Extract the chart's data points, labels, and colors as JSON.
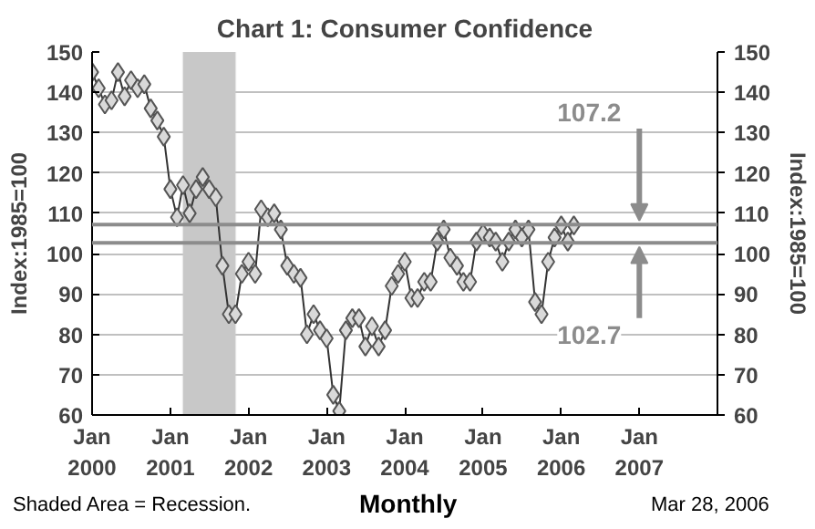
{
  "chart_data": {
    "type": "line",
    "title": "Chart 1: Consumer Confidence",
    "xlabel": "Monthly",
    "ylabel": "Index:1985=100",
    "y2label": "Index:1985=100",
    "x": [
      "2000-01",
      "2000-02",
      "2000-03",
      "2000-04",
      "2000-05",
      "2000-06",
      "2000-07",
      "2000-08",
      "2000-09",
      "2000-10",
      "2000-11",
      "2000-12",
      "2001-01",
      "2001-02",
      "2001-03",
      "2001-04",
      "2001-05",
      "2001-06",
      "2001-07",
      "2001-08",
      "2001-09",
      "2001-10",
      "2001-11",
      "2001-12",
      "2002-01",
      "2002-02",
      "2002-03",
      "2002-04",
      "2002-05",
      "2002-06",
      "2002-07",
      "2002-08",
      "2002-09",
      "2002-10",
      "2002-11",
      "2002-12",
      "2003-01",
      "2003-02",
      "2003-03",
      "2003-04",
      "2003-05",
      "2003-06",
      "2003-07",
      "2003-08",
      "2003-09",
      "2003-10",
      "2003-11",
      "2003-12",
      "2004-01",
      "2004-02",
      "2004-03",
      "2004-04",
      "2004-05",
      "2004-06",
      "2004-07",
      "2004-08",
      "2004-09",
      "2004-10",
      "2004-11",
      "2004-12",
      "2005-01",
      "2005-02",
      "2005-03",
      "2005-04",
      "2005-05",
      "2005-06",
      "2005-07",
      "2005-08",
      "2005-09",
      "2005-10",
      "2005-11",
      "2005-12",
      "2006-01",
      "2006-02",
      "2006-03"
    ],
    "series": [
      {
        "color": "#d9d9d9",
        "values": [
          145,
          141,
          137,
          138,
          145,
          139,
          143,
          141,
          142,
          136,
          133,
          129,
          116,
          109,
          117,
          110,
          116,
          119,
          116,
          114,
          97,
          85,
          85,
          95,
          98,
          95,
          111,
          109,
          110,
          106,
          97,
          95,
          94,
          80,
          85,
          81,
          79,
          65,
          61,
          81,
          84,
          84,
          77,
          82,
          77,
          81,
          92,
          95,
          98,
          89,
          89,
          93,
          93,
          103,
          106,
          99,
          97,
          93,
          93,
          103,
          105,
          104,
          103,
          98,
          103,
          106,
          104,
          106,
          88,
          85,
          98,
          104,
          107,
          103,
          107
        ]
      }
    ],
    "marker": "diamond",
    "line_style": "solid",
    "grid": "y",
    "xlim": [
      "2000-01",
      "2008-01"
    ],
    "xticks": [
      {
        "value": "2000-01",
        "label": "Jan\n2000"
      },
      {
        "value": "2001-01",
        "label": "Jan\n2001"
      },
      {
        "value": "2002-01",
        "label": "Jan\n2002"
      },
      {
        "value": "2003-01",
        "label": "Jan\n2003"
      },
      {
        "value": "2004-01",
        "label": "Jan\n2004"
      },
      {
        "value": "2005-01",
        "label": "Jan\n2005"
      },
      {
        "value": "2006-01",
        "label": "Jan\n2006"
      },
      {
        "value": "2007-01",
        "label": "Jan\n2007"
      }
    ],
    "ylim": [
      60,
      150
    ],
    "yticks": [
      60,
      70,
      80,
      90,
      100,
      110,
      120,
      130,
      140,
      150
    ],
    "y2lim": [
      60,
      150
    ],
    "y2ticks": [
      60,
      70,
      80,
      90,
      100,
      110,
      120,
      130,
      140,
      150
    ],
    "ref_lines": [
      {
        "axis": "y",
        "value": 107.2,
        "label": "107.2",
        "color": "#8c8c8c"
      },
      {
        "axis": "y",
        "value": 102.7,
        "label": "102.7",
        "color": "#8c8c8c"
      }
    ],
    "bands": [
      {
        "axis": "x",
        "from": "2001-03",
        "to": "2001-11",
        "color": "#c8c8c8"
      }
    ],
    "annotations": [
      "Shaded Area = Recession.",
      "Mar 28, 2006"
    ]
  }
}
